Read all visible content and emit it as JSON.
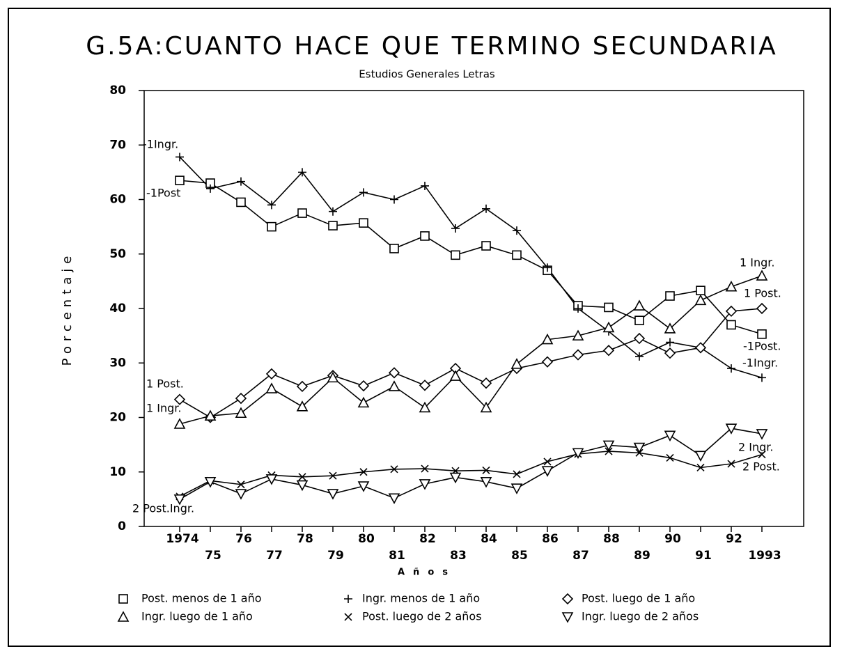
{
  "chart_data": {
    "type": "line",
    "title": "G.5A:CUANTO HACE QUE TERMINO SECUNDARIA",
    "subtitle": "Estudios Generales Letras",
    "ylabel": "Porcentaje",
    "xlabel": "Años",
    "categories": [
      "1974",
      "75",
      "76",
      "77",
      "78",
      "79",
      "80",
      "81",
      "82",
      "83",
      "84",
      "85",
      "86",
      "87",
      "88",
      "89",
      "90",
      "91",
      "92",
      "1993"
    ],
    "ylim": [
      0,
      80
    ],
    "yticks": [
      0,
      10,
      20,
      30,
      40,
      50,
      60,
      70,
      80
    ],
    "series": [
      {
        "name": "Post. menos de 1 año",
        "color": "#000000",
        "marker": "square",
        "values": [
          63.5,
          63,
          59.5,
          55,
          57.5,
          55.2,
          55.7,
          51,
          53.3,
          49.8,
          51.5,
          49.8,
          47,
          40.5,
          40.2,
          37.8,
          42.3,
          43.3,
          37,
          35.3
        ]
      },
      {
        "name": "Ingr. menos de 1 año",
        "color": "#000000",
        "marker": "plus",
        "values": [
          67.8,
          62,
          63.3,
          59,
          65,
          57.8,
          61.3,
          60,
          62.5,
          54.7,
          58.3,
          54.3,
          47.5,
          40,
          35.8,
          31.2,
          33.8,
          32.8,
          29,
          27.3
        ]
      },
      {
        "name": "Post. luego de 1 año",
        "color": "#000000",
        "marker": "diamond",
        "values": [
          23.3,
          20,
          23.5,
          28,
          25.7,
          27.7,
          25.8,
          28.2,
          25.9,
          29,
          26.3,
          29,
          30.2,
          31.5,
          32.3,
          34.5,
          31.8,
          32.8,
          39.5,
          40
        ]
      },
      {
        "name": "Ingr. luego de 1 año",
        "color": "#000000",
        "marker": "triangle",
        "values": [
          18.8,
          20.3,
          20.8,
          25.3,
          22,
          27.3,
          22.7,
          25.7,
          21.8,
          27.6,
          21.8,
          29.8,
          34.3,
          35,
          36.5,
          40.5,
          36.3,
          41.5,
          44,
          46
        ]
      },
      {
        "name": "Post. luego de 2 años",
        "color": "#000000",
        "marker": "x",
        "values": [
          5.5,
          8.4,
          7.7,
          9.4,
          9.1,
          9.3,
          10,
          10.5,
          10.6,
          10.2,
          10.3,
          9.6,
          11.9,
          13.3,
          13.8,
          13.5,
          12.6,
          10.8,
          11.5,
          13.2
        ]
      },
      {
        "name": "Ingr. luego de 2 años",
        "color": "#000000",
        "marker": "triangle-down",
        "values": [
          5,
          8.2,
          6,
          8.7,
          7.6,
          6,
          7.4,
          5.2,
          7.8,
          9,
          8.2,
          7,
          10.2,
          13.5,
          14.9,
          14.5,
          16.7,
          13,
          18,
          17
        ]
      }
    ],
    "annotations": [
      "-1Ingr.",
      "-1Post",
      "1 Post.",
      "1 Ingr.",
      "2 Post.Ingr.",
      "1 Ingr.",
      "1 Post.",
      "-1Post.",
      "-1Ingr.",
      "2 Ingr.",
      "2 Post."
    ]
  }
}
